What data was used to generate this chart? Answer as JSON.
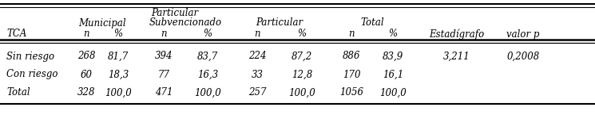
{
  "header_particular": "Particular",
  "header_row2": [
    "Municipal",
    "Subvencionado",
    "Particular",
    "Total"
  ],
  "header_row3": [
    "TCA",
    "n",
    "%",
    "n",
    "%",
    "n",
    "%",
    "n",
    "%",
    "Estadígrafo",
    "valor p"
  ],
  "rows": [
    [
      "Sin riesgo",
      "268",
      "81,7",
      "394",
      "83,7",
      "224",
      "87,2",
      "886",
      "83,9",
      "3,211",
      "0,2008"
    ],
    [
      "Con riesgo",
      "60",
      "18,3",
      "77",
      "16,3",
      "33",
      "12,8",
      "170",
      "16,1",
      "",
      ""
    ],
    [
      "Total",
      "328",
      "100,0",
      "471",
      "100,0",
      "257",
      "100,0",
      "1056",
      "100,0",
      "",
      ""
    ]
  ],
  "background_color": "#ffffff",
  "font_color": "#000000",
  "font_size": 8.5
}
